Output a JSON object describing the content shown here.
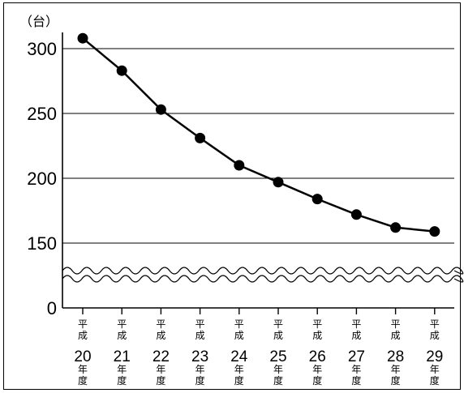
{
  "chart_data": {
    "type": "line",
    "ylabel": "（台）",
    "y_ticks": [
      "300",
      "250",
      "200",
      "150",
      "0"
    ],
    "ylim": [
      0,
      300
    ],
    "axis_break": "between 0 and 150",
    "grid": "horizontal",
    "categories": [
      {
        "era": "平成",
        "num": "20",
        "suffix": "年度"
      },
      {
        "era": "平成",
        "num": "21",
        "suffix": "年度"
      },
      {
        "era": "平成",
        "num": "22",
        "suffix": "年度"
      },
      {
        "era": "平成",
        "num": "23",
        "suffix": "年度"
      },
      {
        "era": "平成",
        "num": "24",
        "suffix": "年度"
      },
      {
        "era": "平成",
        "num": "25",
        "suffix": "年度"
      },
      {
        "era": "平成",
        "num": "26",
        "suffix": "年度"
      },
      {
        "era": "平成",
        "num": "27",
        "suffix": "年度"
      },
      {
        "era": "平成",
        "num": "28",
        "suffix": "年度"
      },
      {
        "era": "平成",
        "num": "29",
        "suffix": "年度"
      }
    ],
    "values": [
      308,
      283,
      253,
      231,
      210,
      197,
      184,
      172,
      162,
      159
    ],
    "line_color": "#000000",
    "marker_color": "#000000"
  }
}
